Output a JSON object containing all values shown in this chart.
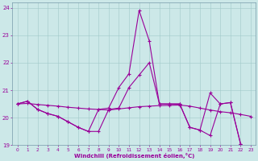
{
  "xlabel": "Windchill (Refroidissement éolien,°C)",
  "bg_color": "#cce8e8",
  "line_color": "#990099",
  "xlim": [
    -0.5,
    23.5
  ],
  "ylim": [
    19,
    24.2
  ],
  "yticks": [
    19,
    20,
    21,
    22,
    23,
    24
  ],
  "xticks": [
    0,
    1,
    2,
    3,
    4,
    5,
    6,
    7,
    8,
    9,
    10,
    11,
    12,
    13,
    14,
    15,
    16,
    17,
    18,
    19,
    20,
    21,
    22,
    23
  ],
  "series_spike_x": [
    0,
    1,
    2,
    3,
    4,
    5,
    6,
    7,
    8,
    9,
    10,
    11,
    12,
    13,
    14,
    15,
    16,
    17,
    18,
    19,
    20,
    21,
    22,
    23
  ],
  "series_spike_y": [
    20.5,
    20.6,
    20.3,
    20.15,
    20.05,
    19.85,
    19.65,
    19.5,
    20.3,
    20.35,
    21.1,
    21.6,
    23.9,
    22.8,
    20.5,
    20.5,
    20.5,
    19.65,
    19.55,
    20.9,
    20.5,
    20.55,
    19.05,
    18.7
  ],
  "series_dip_x": [
    0,
    1,
    2,
    3,
    4,
    5,
    6,
    7,
    8,
    9,
    10,
    11,
    12,
    13,
    14,
    15,
    16,
    17,
    18,
    19,
    20,
    21,
    22,
    23
  ],
  "series_dip_y": [
    20.5,
    20.6,
    20.3,
    20.15,
    20.05,
    19.85,
    19.65,
    19.5,
    19.5,
    20.3,
    20.35,
    21.1,
    21.55,
    22.0,
    20.5,
    20.5,
    20.5,
    19.65,
    19.55,
    19.35,
    20.5,
    20.55,
    19.05,
    18.7
  ],
  "series_flat_x": [
    0,
    1,
    2,
    3,
    4,
    5,
    6,
    7,
    8,
    9,
    10,
    11,
    12,
    13,
    14,
    15,
    16,
    17,
    18,
    19,
    20,
    21,
    22,
    23
  ],
  "series_flat_y": [
    20.5,
    20.52,
    20.48,
    20.45,
    20.42,
    20.38,
    20.35,
    20.32,
    20.3,
    20.28,
    20.32,
    20.36,
    20.4,
    20.42,
    20.44,
    20.45,
    20.46,
    20.42,
    20.35,
    20.28,
    20.22,
    20.18,
    20.12,
    20.05
  ]
}
